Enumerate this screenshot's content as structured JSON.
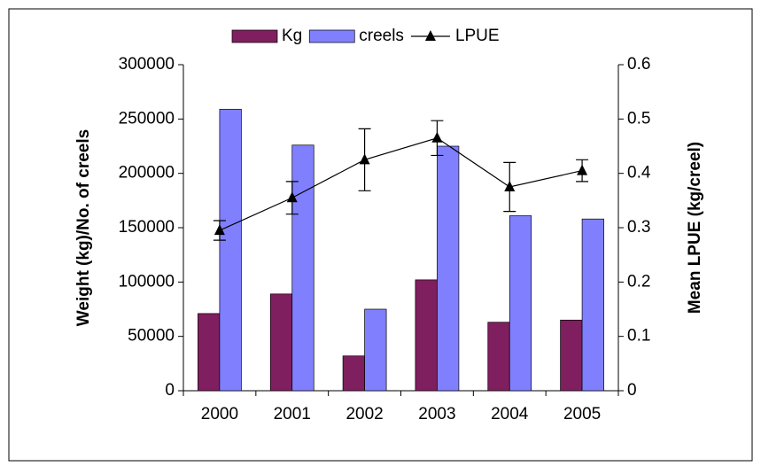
{
  "chart_data": {
    "type": "bar",
    "categories": [
      "2000",
      "2001",
      "2002",
      "2003",
      "2004",
      "2005"
    ],
    "series": [
      {
        "name": "Kg",
        "color": "#7f1f5f",
        "values": [
          71000,
          89000,
          32000,
          102000,
          63000,
          65000
        ]
      },
      {
        "name": "creels",
        "color": "#8080ff",
        "values": [
          259000,
          226000,
          75000,
          225000,
          161000,
          158000
        ]
      },
      {
        "name": "LPUE",
        "color": "#000000",
        "type": "line",
        "axis": "y2",
        "values": [
          0.295,
          0.355,
          0.425,
          0.465,
          0.375,
          0.405
        ],
        "errors": [
          0.018,
          0.03,
          0.057,
          0.032,
          0.045,
          0.02
        ]
      }
    ],
    "y_label": "Weight (kg)/No. of creels",
    "y2_label": "Mean LPUE (kg/creel)",
    "ylim": [
      0,
      300000
    ],
    "yticks": [
      0,
      50000,
      100000,
      150000,
      200000,
      250000,
      300000
    ],
    "y2lim": [
      0,
      0.6
    ],
    "y2ticks": [
      0,
      0.1,
      0.2,
      0.3,
      0.4,
      0.5,
      0.6
    ],
    "legend": "top"
  }
}
